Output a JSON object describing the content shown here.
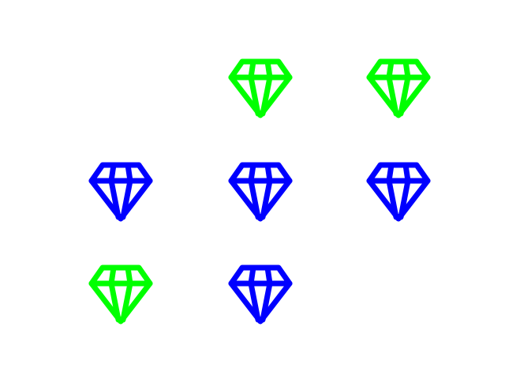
{
  "colors": {
    "green": "#00ff00",
    "blue": "#0000ff",
    "background": "#ffffff"
  },
  "grid": {
    "rows": 3,
    "cols": 3
  },
  "gems": [
    {
      "row": 0,
      "col": 1,
      "color": "green",
      "icon": "diamond-icon"
    },
    {
      "row": 0,
      "col": 2,
      "color": "green",
      "icon": "diamond-icon"
    },
    {
      "row": 1,
      "col": 0,
      "color": "blue",
      "icon": "diamond-icon"
    },
    {
      "row": 1,
      "col": 1,
      "color": "blue",
      "icon": "diamond-icon"
    },
    {
      "row": 1,
      "col": 2,
      "color": "blue",
      "icon": "diamond-icon"
    },
    {
      "row": 2,
      "col": 0,
      "color": "green",
      "icon": "diamond-icon"
    },
    {
      "row": 2,
      "col": 1,
      "color": "blue",
      "icon": "diamond-icon"
    }
  ]
}
